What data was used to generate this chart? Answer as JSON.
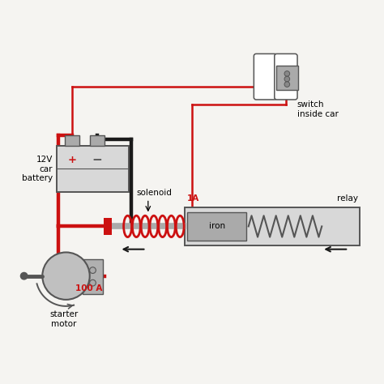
{
  "bg_color": "#f5f4f1",
  "wire_red": "#cc1111",
  "wire_black": "#1a1a1a",
  "gray_light": "#d8d8d8",
  "gray_mid": "#aaaaaa",
  "gray_dark": "#555555",
  "gray_body": "#c0c0c0",
  "white": "#ffffff",
  "labels": {
    "battery": "12V\ncar\nbattery",
    "switch": "switch\ninside car",
    "solenoid": "solenoid",
    "relay": "relay",
    "iron": "iron",
    "current_100a": "100 A",
    "current_1a": "1A",
    "starter": "starter\nmotor"
  },
  "figsize": [
    4.74,
    4.74
  ],
  "dpi": 100
}
